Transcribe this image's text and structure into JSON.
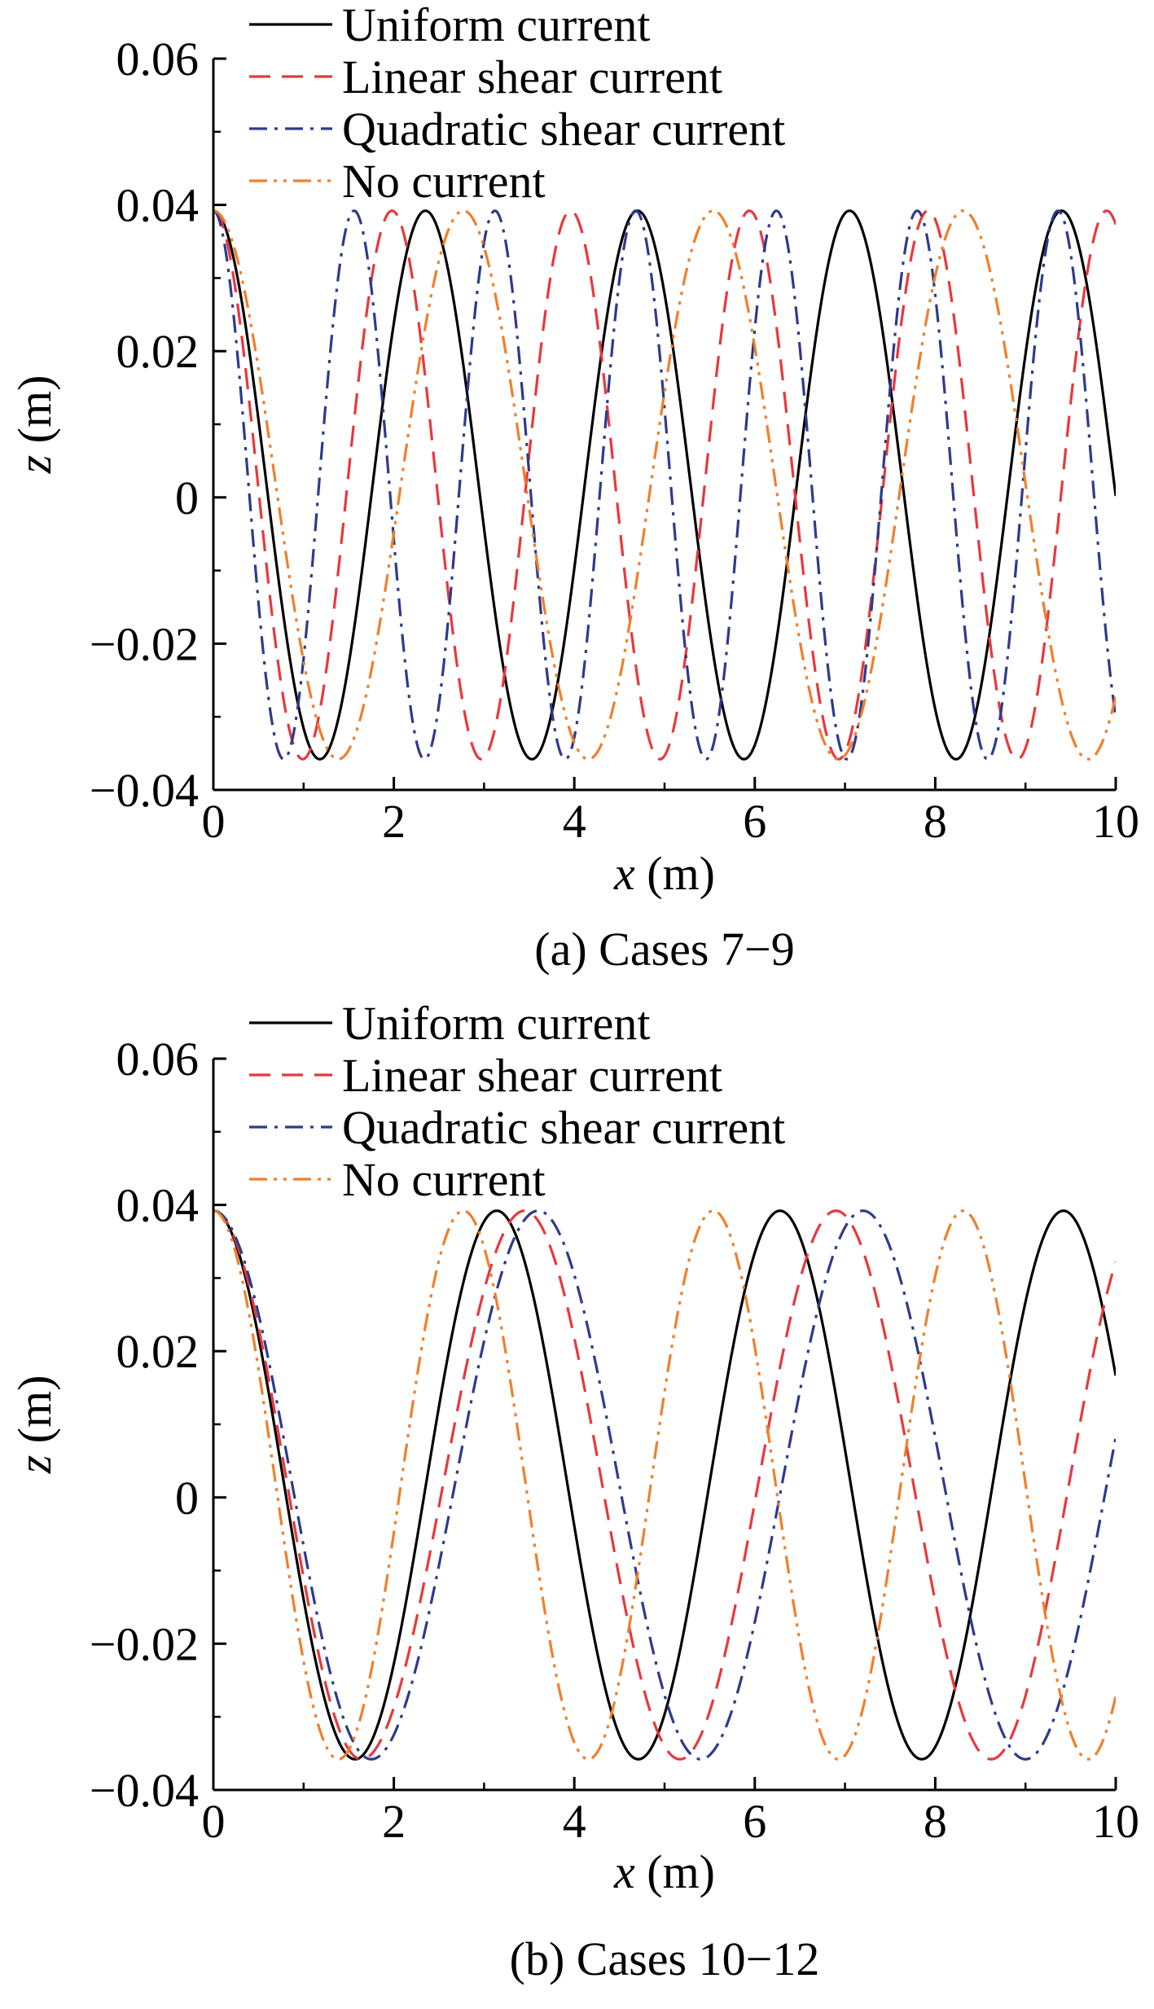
{
  "figure": {
    "legend": [
      {
        "label": "Uniform current",
        "color": "#000000",
        "dash": "solid"
      },
      {
        "label": "Linear shear current",
        "color": "#e8383d",
        "dash": "dashed"
      },
      {
        "label": "Quadratic shear current",
        "color": "#2e3a8c",
        "dash": "dash-dot"
      },
      {
        "label": "No current",
        "color": "#f07f2a",
        "dash": "dash-dot-dot"
      }
    ]
  },
  "chart_data": [
    {
      "type": "line",
      "caption": "(a) Cases 7−9",
      "xlabel": "x (m)",
      "ylabel": "z (m)",
      "xlim": [
        0,
        10
      ],
      "ylim": [
        -0.04,
        0.06
      ],
      "xticks": [
        "0",
        "2",
        "4",
        "6",
        "8",
        "10"
      ],
      "yticks": [
        "−0.04",
        "−0.02",
        "0",
        "0.02",
        "0.04",
        "0.06"
      ],
      "legend_position": "top",
      "grid": false,
      "series": [
        {
          "name": "Uniform current",
          "color": "#000000",
          "dash": "solid",
          "amplitude": 0.0375,
          "offset": 0.0017,
          "crest_x": [
            0,
            2.35,
            4.7,
            7.05,
            9.4
          ],
          "trough_x": [
            1.18,
            3.53,
            5.88,
            8.23
          ]
        },
        {
          "name": "Linear shear current",
          "color": "#e8383d",
          "dash": "dashed",
          "amplitude": 0.0375,
          "offset": 0.0017,
          "crest_x": [
            0,
            1.98,
            3.96,
            5.94,
            7.92,
            9.9
          ],
          "trough_x": [
            0.99,
            2.97,
            4.95,
            6.93,
            8.91
          ]
        },
        {
          "name": "Quadratic shear current",
          "color": "#2e3a8c",
          "dash": "dash-dot",
          "amplitude": 0.0375,
          "offset": 0.0017,
          "crest_x": [
            0,
            1.56,
            3.12,
            4.68,
            6.24,
            7.8,
            9.36
          ],
          "trough_x": [
            0.78,
            2.34,
            3.9,
            5.46,
            7.02,
            8.58
          ]
        },
        {
          "name": "No current",
          "color": "#f07f2a",
          "dash": "dash-dot-dot",
          "amplitude": 0.0375,
          "offset": 0.0017,
          "crest_x": [
            0,
            2.77,
            5.54,
            8.31
          ],
          "trough_x": [
            1.385,
            4.155,
            6.925,
            9.695
          ]
        }
      ]
    },
    {
      "type": "line",
      "caption": "(b) Cases 10−12",
      "xlabel": "x (m)",
      "ylabel": "z (m)",
      "xlim": [
        0,
        10
      ],
      "ylim": [
        -0.04,
        0.06
      ],
      "xticks": [
        "0",
        "2",
        "4",
        "6",
        "8",
        "10"
      ],
      "yticks": [
        "−0.04",
        "−0.02",
        "0",
        "0.02",
        "0.04",
        "0.06"
      ],
      "legend_position": "top",
      "grid": false,
      "series": [
        {
          "name": "Uniform current",
          "color": "#000000",
          "dash": "solid",
          "amplitude": 0.0375,
          "offset": 0.0017,
          "crest_x": [
            0,
            3.14,
            6.28,
            9.42
          ],
          "trough_x": [
            1.57,
            4.71,
            7.85
          ]
        },
        {
          "name": "Linear shear current",
          "color": "#e8383d",
          "dash": "dashed",
          "amplitude": 0.0375,
          "offset": 0.0017,
          "crest_x": [
            0,
            3.45,
            6.9
          ],
          "trough_x": [
            1.64,
            5.17,
            8.62
          ]
        },
        {
          "name": "Quadratic shear current",
          "color": "#2e3a8c",
          "dash": "dash-dot",
          "amplitude": 0.0375,
          "offset": 0.0017,
          "crest_x": [
            0,
            3.6,
            7.2
          ],
          "trough_x": [
            1.75,
            5.4,
            9.0
          ]
        },
        {
          "name": "No current",
          "color": "#f07f2a",
          "dash": "dash-dot-dot",
          "amplitude": 0.0375,
          "offset": 0.0017,
          "crest_x": [
            0,
            2.77,
            5.54,
            8.31
          ],
          "trough_x": [
            1.385,
            4.155,
            6.925,
            9.695
          ]
        }
      ]
    }
  ]
}
